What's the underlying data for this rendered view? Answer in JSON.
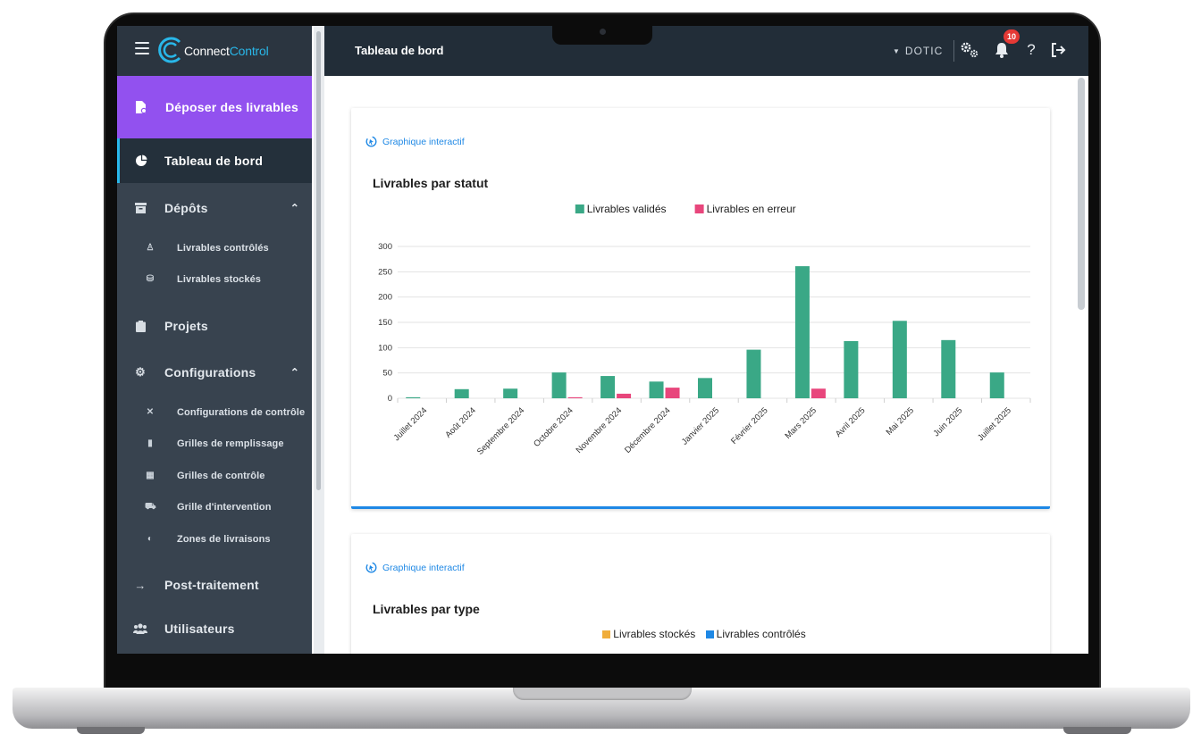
{
  "app": {
    "logo_part1": "Connect",
    "logo_part2": "Control"
  },
  "sidebar": {
    "primary_action": "Déposer des livrables",
    "items": [
      {
        "label": "Tableau de bord",
        "icon": "pie-chart-icon",
        "active": true
      },
      {
        "label": "Dépôts",
        "icon": "archive-icon",
        "expanded": true,
        "children": [
          {
            "label": "Livrables contrôlés",
            "icon": "stamp-icon"
          },
          {
            "label": "Livrables stockés",
            "icon": "storage-icon"
          }
        ]
      },
      {
        "label": "Projets",
        "icon": "clipboard-icon"
      },
      {
        "label": "Configurations",
        "icon": "cogs-icon",
        "expanded": true,
        "children": [
          {
            "label": "Configurations de contrôle",
            "icon": "tools-icon"
          },
          {
            "label": "Grilles de remplissage",
            "icon": "clipboard-icon"
          },
          {
            "label": "Grilles de contrôle",
            "icon": "calendar-icon"
          },
          {
            "label": "Grille d'intervention",
            "icon": "intervention-icon"
          },
          {
            "label": "Zones de livraisons",
            "icon": "globe-icon"
          }
        ]
      },
      {
        "label": "Post-traitement",
        "icon": "arrow-right-icon"
      },
      {
        "label": "Utilisateurs",
        "icon": "users-icon"
      }
    ]
  },
  "header": {
    "title": "Tableau de bord",
    "organization": "DOTIC",
    "notification_count": "10",
    "help_glyph": "?"
  },
  "cards": [
    {
      "badge": "Graphique interactif",
      "title": "Livrables par statut"
    },
    {
      "badge": "Graphique interactif",
      "title": "Livrables par type",
      "legend": [
        {
          "label": "Livrables stockés",
          "color": "#f0ad3a"
        },
        {
          "label": "Livrables contrôlés",
          "color": "#1e88e5"
        }
      ]
    }
  ],
  "chart_data": {
    "type": "bar",
    "title": "Livrables par statut",
    "categories": [
      "Juillet 2024",
      "Août 2024",
      "Septembre 2024",
      "Octobre 2024",
      "Novembre 2024",
      "Décembre 2024",
      "Janvier 2025",
      "Février 2025",
      "Mars 2025",
      "Avril 2025",
      "Mai 2025",
      "Juin 2025",
      "Juillet 2025"
    ],
    "series": [
      {
        "name": "Livrables validés",
        "color": "#3aa886",
        "values": [
          2,
          18,
          19,
          51,
          44,
          33,
          40,
          96,
          261,
          113,
          153,
          115,
          51
        ]
      },
      {
        "name": "Livrables en erreur",
        "color": "#e8467c",
        "values": [
          0,
          0,
          0,
          2,
          9,
          21,
          0,
          0,
          19,
          0,
          0,
          0,
          0
        ]
      }
    ],
    "ylim": [
      0,
      300
    ],
    "yticks": [
      0,
      50,
      100,
      150,
      200,
      250,
      300
    ],
    "grid": true,
    "legend_position": "top"
  }
}
